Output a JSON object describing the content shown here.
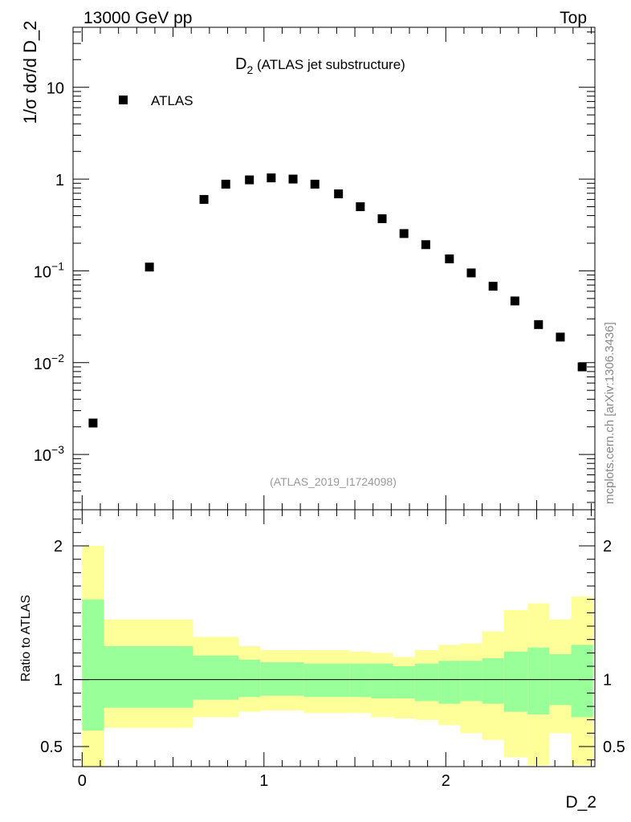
{
  "header": {
    "left_label": "13000 GeV pp",
    "right_label": "Top"
  },
  "side_label": "mcplots.cern.ch [arXiv:1306.3436]",
  "analysis_id": "(ATLAS_2019_I1724098)",
  "chart_data": [
    {
      "type": "scatter",
      "panel": "main",
      "title": "D",
      "title_subscript": "2",
      "title_suffix": " (ATLAS jet substructure)",
      "ylabel": "1/σ dσ/d D_2",
      "yscale": "log",
      "ylim": [
        0.00025,
        45
      ],
      "xlim": [
        -0.05,
        2.82
      ],
      "legend": {
        "label": "ATLAS",
        "position": "top-left",
        "marker": "square",
        "color": "#000000"
      },
      "y_tick_labels": [
        {
          "value": 0.001,
          "base": "10",
          "exp": "−3"
        },
        {
          "value": 0.01,
          "base": "10",
          "exp": "−2"
        },
        {
          "value": 0.1,
          "base": "10",
          "exp": "−1"
        },
        {
          "value": 1,
          "base": "1",
          "exp": ""
        },
        {
          "value": 10,
          "base": "10",
          "exp": ""
        }
      ],
      "series": [
        {
          "name": "ATLAS",
          "points": [
            {
              "x": 0.06,
              "y": 0.0022
            },
            {
              "x": 0.37,
              "y": 0.11
            },
            {
              "x": 0.67,
              "y": 0.6
            },
            {
              "x": 0.79,
              "y": 0.88
            },
            {
              "x": 0.92,
              "y": 0.98
            },
            {
              "x": 1.04,
              "y": 1.03
            },
            {
              "x": 1.16,
              "y": 1.0
            },
            {
              "x": 1.28,
              "y": 0.88
            },
            {
              "x": 1.41,
              "y": 0.69
            },
            {
              "x": 1.53,
              "y": 0.5
            },
            {
              "x": 1.65,
              "y": 0.37
            },
            {
              "x": 1.77,
              "y": 0.255
            },
            {
              "x": 1.89,
              "y": 0.193
            },
            {
              "x": 2.02,
              "y": 0.135
            },
            {
              "x": 2.14,
              "y": 0.095
            },
            {
              "x": 2.26,
              "y": 0.068
            },
            {
              "x": 2.38,
              "y": 0.047
            },
            {
              "x": 2.51,
              "y": 0.026
            },
            {
              "x": 2.63,
              "y": 0.019
            },
            {
              "x": 2.75,
              "y": 0.009
            }
          ]
        }
      ]
    },
    {
      "type": "area",
      "panel": "ratio",
      "ylabel": "Ratio to ATLAS",
      "xlabel": "D_2",
      "ylim": [
        0.35,
        2.27
      ],
      "xlim": [
        -0.05,
        2.82
      ],
      "x_tick_labels": [
        {
          "value": 0,
          "label": "0"
        },
        {
          "value": 1,
          "label": "1"
        },
        {
          "value": 2,
          "label": "2"
        }
      ],
      "y_tick_labels": [
        {
          "value": 0.5,
          "label": "0.5"
        },
        {
          "value": 1,
          "label": "1"
        },
        {
          "value": 2,
          "label": "2"
        }
      ],
      "reference_line": 1,
      "band_colors": {
        "inner": "#99ff99",
        "outer": "#ffff99"
      },
      "bins": [
        {
          "x0": 0.0,
          "x1": 0.12,
          "inner": [
            0.62,
            1.6
          ],
          "outer": [
            0.35,
            2.0
          ]
        },
        {
          "x0": 0.12,
          "x1": 0.61,
          "inner": [
            0.79,
            1.25
          ],
          "outer": [
            0.64,
            1.45
          ]
        },
        {
          "x0": 0.61,
          "x1": 0.86,
          "inner": [
            0.85,
            1.18
          ],
          "outer": [
            0.72,
            1.32
          ]
        },
        {
          "x0": 0.86,
          "x1": 0.98,
          "inner": [
            0.87,
            1.15
          ],
          "outer": [
            0.76,
            1.25
          ]
        },
        {
          "x0": 0.98,
          "x1": 1.22,
          "inner": [
            0.88,
            1.13
          ],
          "outer": [
            0.77,
            1.22
          ]
        },
        {
          "x0": 1.22,
          "x1": 1.47,
          "inner": [
            0.87,
            1.12
          ],
          "outer": [
            0.75,
            1.22
          ]
        },
        {
          "x0": 1.47,
          "x1": 1.59,
          "inner": [
            0.87,
            1.12
          ],
          "outer": [
            0.75,
            1.21
          ]
        },
        {
          "x0": 1.59,
          "x1": 1.71,
          "inner": [
            0.86,
            1.12
          ],
          "outer": [
            0.72,
            1.2
          ]
        },
        {
          "x0": 1.71,
          "x1": 1.83,
          "inner": [
            0.86,
            1.1
          ],
          "outer": [
            0.71,
            1.17
          ]
        },
        {
          "x0": 1.83,
          "x1": 1.96,
          "inner": [
            0.84,
            1.12
          ],
          "outer": [
            0.7,
            1.22
          ]
        },
        {
          "x0": 1.96,
          "x1": 2.08,
          "inner": [
            0.82,
            1.14
          ],
          "outer": [
            0.66,
            1.26
          ]
        },
        {
          "x0": 2.08,
          "x1": 2.2,
          "inner": [
            0.84,
            1.14
          ],
          "outer": [
            0.6,
            1.27
          ]
        },
        {
          "x0": 2.2,
          "x1": 2.32,
          "inner": [
            0.82,
            1.16
          ],
          "outer": [
            0.55,
            1.36
          ]
        },
        {
          "x0": 2.32,
          "x1": 2.45,
          "inner": [
            0.76,
            1.21
          ],
          "outer": [
            0.42,
            1.52
          ]
        },
        {
          "x0": 2.45,
          "x1": 2.57,
          "inner": [
            0.74,
            1.24
          ],
          "outer": [
            0.36,
            1.57
          ]
        },
        {
          "x0": 2.57,
          "x1": 2.69,
          "inner": [
            0.81,
            1.19
          ],
          "outer": [
            0.6,
            1.45
          ]
        },
        {
          "x0": 2.69,
          "x1": 2.81,
          "inner": [
            0.72,
            1.26
          ],
          "outer": [
            0.36,
            1.62
          ]
        }
      ]
    }
  ]
}
